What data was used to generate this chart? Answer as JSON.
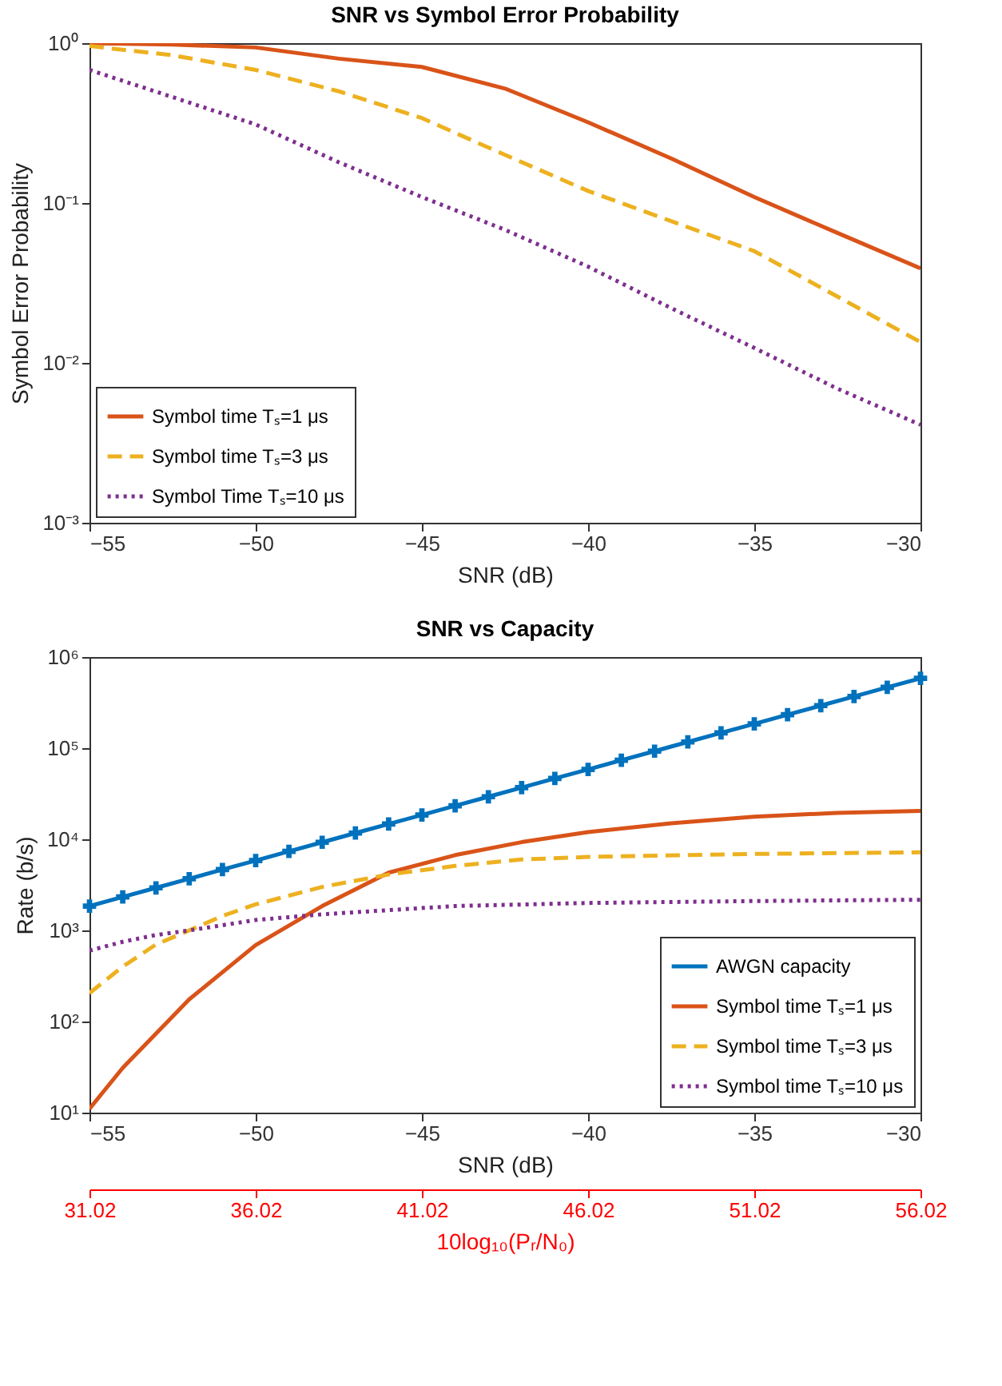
{
  "chart_data": [
    {
      "type": "line",
      "title": "SNR vs Symbol Error Probability",
      "xlabel": "SNR (dB)",
      "ylabel": "Symbol Error Probability",
      "x": [
        -55,
        -52.5,
        -50,
        -47.5,
        -45,
        -42.5,
        -40,
        -37.5,
        -35,
        -32.5,
        -30
      ],
      "series": [
        {
          "name": "Symbol time Tₛ=1 μs",
          "color": "#d95319",
          "line_style": "solid",
          "values": [
            1.0,
            0.98,
            0.94,
            0.8,
            0.71,
            0.52,
            0.32,
            0.19,
            0.109,
            0.065,
            0.039
          ]
        },
        {
          "name": "Symbol time Tₛ=3 μs",
          "color": "#edb120",
          "line_style": "dashed",
          "values": [
            0.96,
            0.84,
            0.68,
            0.5,
            0.34,
            0.2,
            0.119,
            0.077,
            0.05,
            0.026,
            0.0135
          ]
        },
        {
          "name": "Symbol Time Tₛ=10 μs",
          "color": "#7e2f8e",
          "line_style": "dotted",
          "values": [
            0.68,
            0.46,
            0.31,
            0.18,
            0.109,
            0.068,
            0.04,
            0.022,
            0.0124,
            0.0069,
            0.0041
          ]
        }
      ],
      "xlim": [
        -55,
        -30
      ],
      "xticks": [
        -55,
        -50,
        -45,
        -40,
        -35,
        -30
      ],
      "log": "y",
      "ylim": [
        0.001,
        1
      ],
      "yticks": [
        {
          "value": 0.001,
          "label": "10⁻³"
        },
        {
          "value": 0.01,
          "label": "10⁻²"
        },
        {
          "value": 0.1,
          "label": "10⁻¹"
        },
        {
          "value": 1,
          "label": "10⁰"
        }
      ],
      "legend": "bottom left",
      "grid": false
    },
    {
      "type": "line",
      "title": "SNR vs Capacity",
      "xlabel": "SNR (dB)",
      "ylabel": "Rate (b/s)",
      "series": [
        {
          "name": "AWGN capacity",
          "color": "#0072bd",
          "line_style": "solid",
          "marker": "cross",
          "x": [
            -55,
            -54,
            -53,
            -52,
            -51,
            -50,
            -49,
            -48,
            -47,
            -46,
            -45,
            -44,
            -43,
            -42,
            -41,
            -40,
            -39,
            -38,
            -37,
            -36,
            -35,
            -34,
            -33,
            -32,
            -31,
            -30
          ],
          "values": [
            1850,
            2330,
            2930,
            3690,
            4650,
            5850,
            7370,
            9270,
            11700,
            14700,
            18500,
            23300,
            29300,
            36900,
            46500,
            58500,
            73700,
            92700,
            117000,
            147000,
            185000,
            233000,
            293000,
            369000,
            465000,
            585000
          ]
        },
        {
          "name": "Symbol time Tₛ=1 μs",
          "color": "#d95319",
          "line_style": "solid",
          "x": [
            -55,
            -54,
            -52,
            -50,
            -48,
            -46,
            -44,
            -42,
            -40,
            -37.5,
            -35,
            -32.5,
            -30
          ],
          "values": [
            11,
            31,
            175,
            690,
            1850,
            4300,
            6700,
            9300,
            12000,
            15000,
            17700,
            19500,
            20500
          ]
        },
        {
          "name": "Symbol time Tₛ=3 μs",
          "color": "#edb120",
          "line_style": "dashed",
          "x": [
            -55,
            -54,
            -53,
            -52,
            -51,
            -50,
            -48,
            -46,
            -44,
            -42,
            -40,
            -35,
            -30
          ],
          "values": [
            205,
            400,
            700,
            1000,
            1440,
            1930,
            3000,
            4100,
            5100,
            6000,
            6400,
            6900,
            7200
          ]
        },
        {
          "name": "Symbol time Tₛ=10 μs",
          "color": "#7e2f8e",
          "line_style": "dotted",
          "x": [
            -55,
            -54,
            -53,
            -52,
            -50,
            -48,
            -46,
            -44,
            -40,
            -35,
            -30
          ],
          "values": [
            600,
            750,
            890,
            1000,
            1300,
            1500,
            1670,
            1850,
            2000,
            2100,
            2170
          ]
        }
      ],
      "xlim": [
        -55,
        -30
      ],
      "xticks": [
        -55,
        -50,
        -45,
        -40,
        -35,
        -30
      ],
      "log": "y",
      "ylim": [
        10,
        1000000
      ],
      "yticks": [
        {
          "value": 10,
          "label": "10¹"
        },
        {
          "value": 100,
          "label": "10²"
        },
        {
          "value": 1000,
          "label": "10³"
        },
        {
          "value": 10000,
          "label": "10⁴"
        },
        {
          "value": 100000,
          "label": "10⁵"
        },
        {
          "value": 1000000,
          "label": "10⁶"
        }
      ],
      "x2lim": [
        31.02,
        56.02
      ],
      "x2ticks": [
        31.02,
        36.02,
        41.02,
        46.02,
        51.02,
        56.02
      ],
      "x2label": "10log₁₀(Pᵣ/N₀)",
      "legend": "bottom right",
      "grid": false
    }
  ]
}
